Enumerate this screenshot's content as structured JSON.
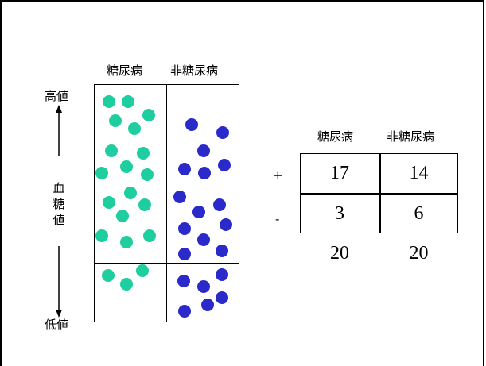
{
  "left": {
    "header_diabetes": "糖尿病",
    "header_non_diabetes": "非糖尿病",
    "axis_high": "高値",
    "axis_low": "低値",
    "axis_label_chars": [
      "血",
      "糖",
      "値"
    ]
  },
  "table": {
    "headers": [
      "糖尿病",
      "非糖尿病"
    ],
    "rows": [
      {
        "sign": "+",
        "values": [
          "17",
          "14"
        ]
      },
      {
        "sign": "-",
        "values": [
          "3",
          "6"
        ]
      }
    ],
    "totals": [
      "20",
      "20"
    ]
  },
  "colors": {
    "diabetes_dot": "#1ece9f",
    "non_diabetes_dot": "#2a29c9"
  },
  "dot_counts": {
    "diabetes_above_cutoff": 17,
    "diabetes_below_cutoff": 3,
    "non_diabetes_above_cutoff": 14,
    "non_diabetes_below_cutoff": 6
  }
}
